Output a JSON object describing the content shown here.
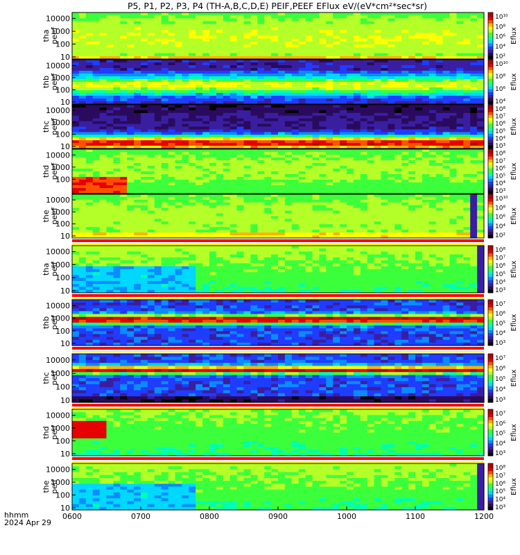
{
  "title": "P5, P1, P2, P3, P4 (TH-A,B,C,D,E) PEIF,PEEF EFlux eV/(eV*cm²*sec*sr)",
  "footer": {
    "hhmm": "hhmm",
    "date": "2024 Apr 29"
  },
  "colors": {
    "spectrogram_scale": [
      "#000000",
      "#2a0a5c",
      "#3a1ea0",
      "#1f3cff",
      "#0a8cff",
      "#00d8ff",
      "#00ffb0",
      "#3cff3c",
      "#b4ff28",
      "#ffff00",
      "#ffb400",
      "#ff5000",
      "#e60000",
      "#b40000"
    ],
    "flag_bar": [
      "#ff0000",
      "#ffffff",
      "#ffff00"
    ]
  },
  "chart_data": {
    "type": "heatmap",
    "x_axis": {
      "tick_labels": [
        "0600",
        "0700",
        "0800",
        "0900",
        "1000",
        "1100",
        "1200"
      ],
      "range": [
        "0600",
        "1200"
      ],
      "label": "hhmm"
    },
    "panels": [
      {
        "ylabel_1": "tha",
        "ylabel_2": "peef",
        "yticks": [
          "10000",
          "1000",
          "100",
          "10"
        ],
        "zlabel": "Eflux",
        "cticks": [
          "10¹⁰",
          "10⁸",
          "10⁶",
          "10⁴",
          "10²"
        ],
        "species": "electron",
        "profile": "hot_broad",
        "flag_after": false
      },
      {
        "ylabel_1": "thb",
        "ylabel_2": "peef",
        "yticks": [
          "10000",
          "1000",
          "100",
          "10"
        ],
        "zlabel": "Eflux",
        "cticks": [
          "10¹⁰",
          "10⁸",
          "10⁶",
          "10⁴"
        ],
        "species": "electron",
        "profile": "solarwind_band",
        "flag_after": false
      },
      {
        "ylabel_1": "thc",
        "ylabel_2": "peef",
        "yticks": [
          "10000",
          "1000",
          "100",
          "10"
        ],
        "zlabel": "Eflux",
        "cticks": [
          "10⁸",
          "10⁷",
          "10⁶",
          "10⁵",
          "10⁴",
          "10³"
        ],
        "species": "electron",
        "profile": "solarwind_low",
        "flag_after": false
      },
      {
        "ylabel_1": "thd",
        "ylabel_2": "peef",
        "yticks": [
          "10000",
          "1000",
          "100"
        ],
        "zlabel": "Eflux",
        "cticks": [
          "10⁸",
          "10⁷",
          "10⁶",
          "10⁵",
          "10⁴",
          "10³"
        ],
        "species": "electron",
        "profile": "hot_onset",
        "flag_after": false
      },
      {
        "ylabel_1": "the",
        "ylabel_2": "peef",
        "yticks": [
          "10000",
          "1000",
          "100",
          "10"
        ],
        "zlabel": "Eflux",
        "cticks": [
          "10¹⁰",
          "10⁸",
          "10⁶",
          "10⁴",
          "10²"
        ],
        "species": "electron",
        "profile": "hot_broad_line",
        "flag_after": true
      },
      {
        "ylabel_1": "tha",
        "ylabel_2": "peif",
        "yticks": [
          "10000",
          "1000",
          "100",
          "10"
        ],
        "zlabel": "Eflux",
        "cticks": [
          "10⁸",
          "10⁷",
          "10⁶",
          "10⁵",
          "10⁴",
          "10³"
        ],
        "species": "ion",
        "profile": "ion_hot",
        "flag_after": true
      },
      {
        "ylabel_1": "thb",
        "ylabel_2": "peif",
        "yticks": [
          "10000",
          "1000",
          "100",
          "10"
        ],
        "zlabel": "Eflux",
        "cticks": [
          "10⁷",
          "10⁶",
          "10⁵",
          "10⁴",
          "10³"
        ],
        "species": "ion",
        "profile": "ion_solarwind",
        "flag_after": true
      },
      {
        "ylabel_1": "thc",
        "ylabel_2": "peif",
        "yticks": [
          "10000",
          "1000",
          "100",
          "10"
        ],
        "zlabel": "Eflux",
        "cticks": [
          "10⁷",
          "10⁶",
          "10⁵",
          "10⁴",
          "10³"
        ],
        "species": "ion",
        "profile": "ion_solarwind2",
        "flag_after": true
      },
      {
        "ylabel_1": "thd",
        "ylabel_2": "peif",
        "yticks": [
          "10000",
          "1000",
          "100",
          "10"
        ],
        "zlabel": "Eflux",
        "cticks": [
          "10⁷",
          "10⁶",
          "10⁵",
          "10⁴",
          "10³"
        ],
        "species": "ion",
        "profile": "ion_hot_onset",
        "flag_after": true
      },
      {
        "ylabel_1": "the",
        "ylabel_2": "peif",
        "yticks": [
          "10000",
          "1000",
          "100",
          "10"
        ],
        "zlabel": "Eflux",
        "cticks": [
          "10⁸",
          "10⁷",
          "10⁶",
          "10⁵",
          "10⁴",
          "10³"
        ],
        "species": "ion",
        "profile": "ion_hot",
        "flag_after": false
      }
    ]
  }
}
